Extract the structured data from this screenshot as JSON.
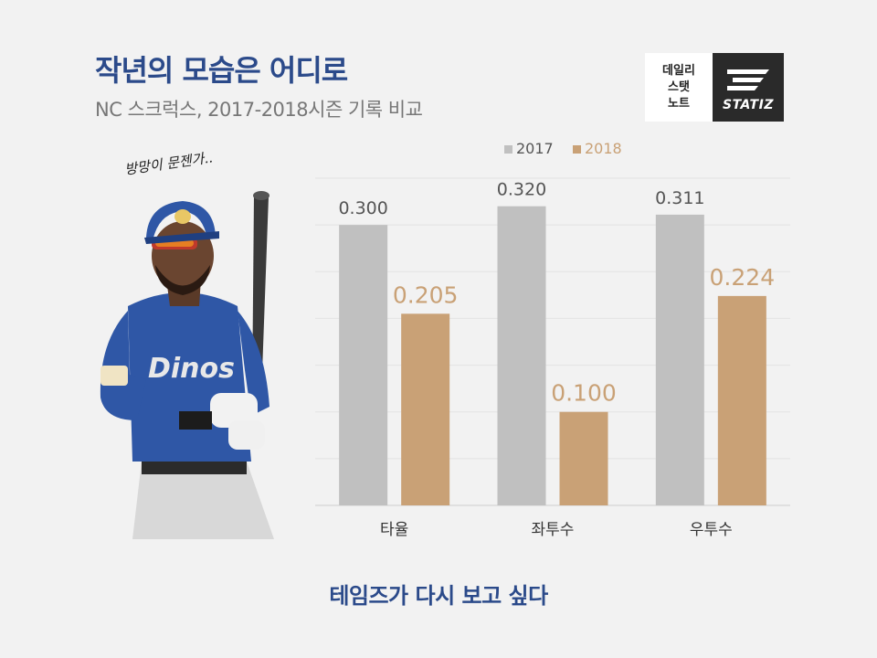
{
  "header": {
    "title": "작년의 모습은 어디로",
    "subtitle": "NC 스크럭스, 2017-2018시즌 기록 비교"
  },
  "logo": {
    "lines": [
      "데일리",
      "스탯",
      "노트"
    ],
    "brand": "STATIZ"
  },
  "caption": "방망이 문젠가..",
  "footer": "테임즈가 다시 보고 싶다",
  "colors": {
    "series_2017": "#c0c0c0",
    "series_2018": "#c9a176",
    "title": "#2b4a8a"
  },
  "chart_data": {
    "type": "bar",
    "categories": [
      "타율",
      "좌투수",
      "우투수"
    ],
    "series": [
      {
        "name": "2017",
        "values": [
          0.3,
          0.32,
          0.311
        ]
      },
      {
        "name": "2018",
        "values": [
          0.205,
          0.1,
          0.224
        ]
      }
    ],
    "ylim": [
      0,
      0.35
    ],
    "grid": true,
    "legend": "top",
    "value_labels": {
      "2017": [
        "0.300",
        "0.320",
        "0.311"
      ],
      "2018": [
        "0.205",
        "0.100",
        "0.224"
      ]
    }
  }
}
